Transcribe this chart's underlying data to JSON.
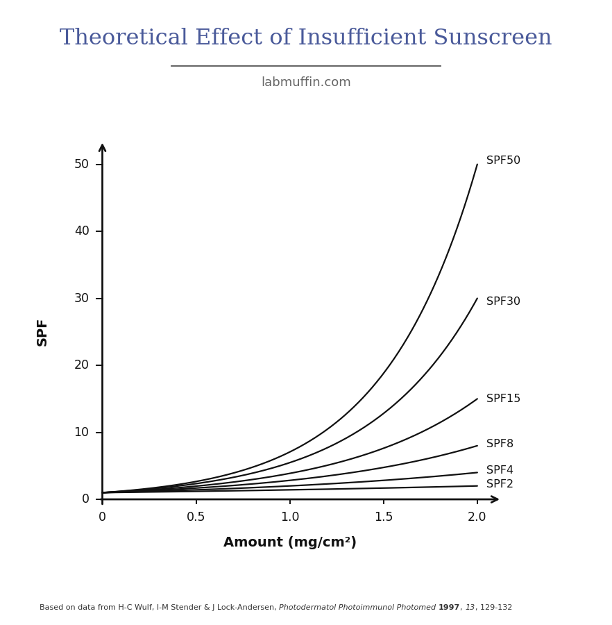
{
  "title": "Theoretical Effect of Insufficient Sunscreen",
  "subtitle": "labmuffin.com",
  "xlabel": "Amount (mg/cm²)",
  "ylabel": "SPF",
  "spf_values": [
    2,
    4,
    8,
    15,
    30,
    50
  ],
  "x_min": 0,
  "x_max": 2.0,
  "y_min": 0,
  "y_max": 50,
  "title_color": "#4a5a9a",
  "subtitle_color": "#666666",
  "line_color": "#111111",
  "axis_color": "#111111",
  "x_ticks": [
    0,
    0.5,
    1.0,
    1.5,
    2.0
  ],
  "x_tick_labels": [
    "0",
    "0.5",
    "1.0",
    "1.5",
    "2.0"
  ],
  "y_ticks": [
    0,
    10,
    20,
    30,
    40,
    50
  ],
  "y_tick_labels": [
    "0",
    "10",
    "20",
    "30",
    "40",
    "50"
  ],
  "label_map": {
    "2": "SPF2",
    "4": "SPF4",
    "8": "SPF8",
    "15": "SPF15",
    "30": "SPF30",
    "50": "SPF50"
  },
  "footnote_parts": [
    {
      "text": "Based on data from H-C Wulf, I-M Stender & J Lock-Andersen, ",
      "style": "normal",
      "weight": "normal"
    },
    {
      "text": "Photodermatol Photoimmunol Photomed",
      "style": "italic",
      "weight": "normal"
    },
    {
      "text": " ",
      "style": "normal",
      "weight": "normal"
    },
    {
      "text": "1997",
      "style": "normal",
      "weight": "bold"
    },
    {
      "text": ", ",
      "style": "normal",
      "weight": "normal"
    },
    {
      "text": "13",
      "style": "italic",
      "weight": "normal"
    },
    {
      "text": ", 129-132",
      "style": "normal",
      "weight": "normal"
    }
  ]
}
